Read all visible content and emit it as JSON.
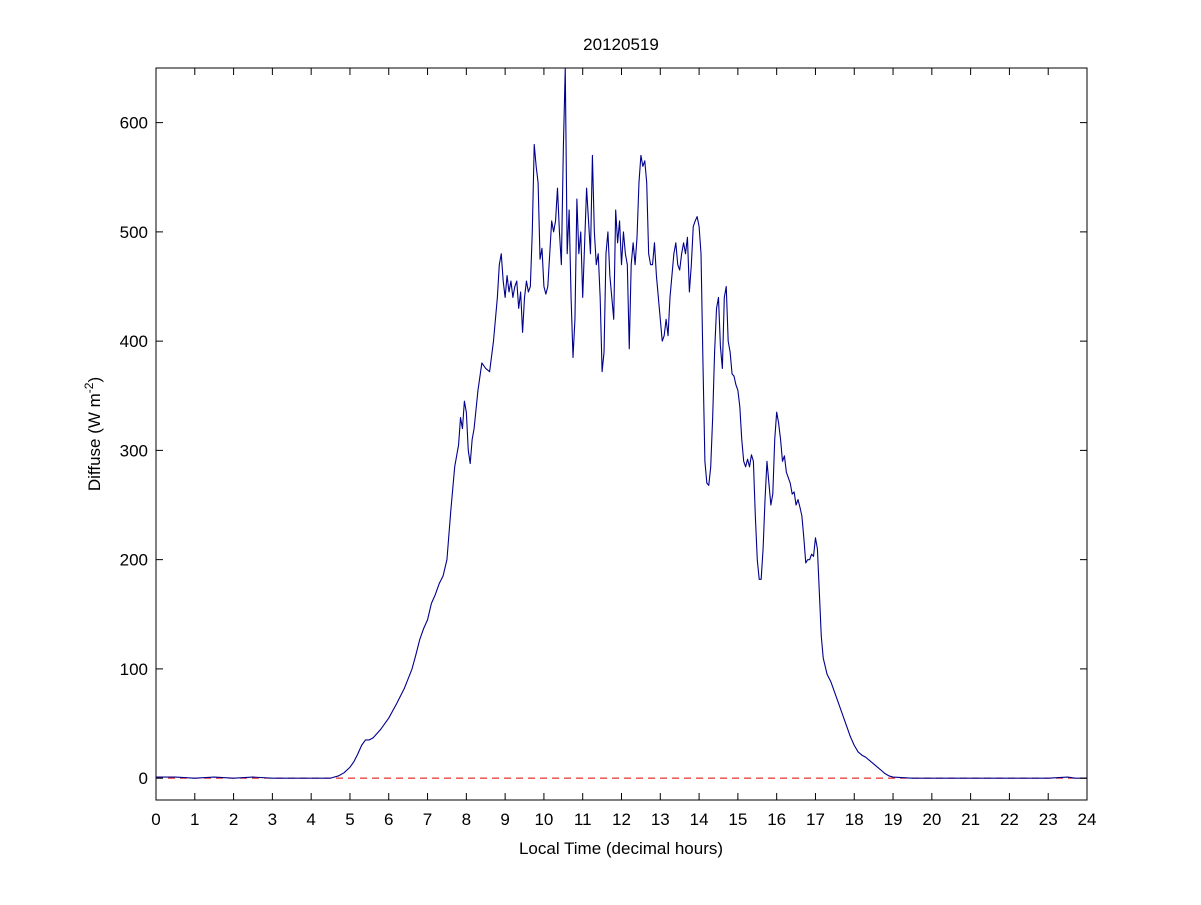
{
  "chart_data": {
    "type": "line",
    "title": "20120519",
    "xlabel": "Local Time (decimal hours)",
    "ylabel_main": "Diffuse (W m",
    "ylabel_sup": "-2",
    "ylabel_end": ")",
    "xlim": [
      0,
      24
    ],
    "ylim": [
      -20,
      650
    ],
    "xticks": [
      0,
      1,
      2,
      3,
      4,
      5,
      6,
      7,
      8,
      9,
      10,
      11,
      12,
      13,
      14,
      15,
      16,
      17,
      18,
      19,
      20,
      21,
      22,
      23,
      24
    ],
    "yticks": [
      0,
      100,
      200,
      300,
      400,
      500,
      600
    ],
    "grid": false,
    "reference_line": {
      "y": 0,
      "color": "#e00000",
      "style": "dashed"
    },
    "series": [
      {
        "color": "#00008b",
        "points": [
          [
            0.0,
            1
          ],
          [
            0.5,
            1
          ],
          [
            1.0,
            0
          ],
          [
            1.5,
            1
          ],
          [
            2.0,
            0
          ],
          [
            2.5,
            1
          ],
          [
            3.0,
            0
          ],
          [
            3.5,
            0
          ],
          [
            4.0,
            0
          ],
          [
            4.5,
            0
          ],
          [
            4.7,
            2
          ],
          [
            4.85,
            5
          ],
          [
            5.0,
            10
          ],
          [
            5.1,
            15
          ],
          [
            5.2,
            22
          ],
          [
            5.3,
            30
          ],
          [
            5.4,
            35
          ],
          [
            5.5,
            35
          ],
          [
            5.6,
            37
          ],
          [
            5.8,
            45
          ],
          [
            6.0,
            55
          ],
          [
            6.2,
            68
          ],
          [
            6.4,
            82
          ],
          [
            6.6,
            100
          ],
          [
            6.7,
            113
          ],
          [
            6.8,
            127
          ],
          [
            6.9,
            137
          ],
          [
            7.0,
            145
          ],
          [
            7.1,
            160
          ],
          [
            7.2,
            168
          ],
          [
            7.3,
            178
          ],
          [
            7.4,
            185
          ],
          [
            7.5,
            200
          ],
          [
            7.6,
            245
          ],
          [
            7.7,
            285
          ],
          [
            7.8,
            305
          ],
          [
            7.85,
            330
          ],
          [
            7.9,
            320
          ],
          [
            7.95,
            345
          ],
          [
            8.0,
            335
          ],
          [
            8.05,
            300
          ],
          [
            8.1,
            288
          ],
          [
            8.15,
            310
          ],
          [
            8.2,
            320
          ],
          [
            8.3,
            355
          ],
          [
            8.4,
            380
          ],
          [
            8.5,
            375
          ],
          [
            8.6,
            372
          ],
          [
            8.7,
            400
          ],
          [
            8.8,
            440
          ],
          [
            8.85,
            470
          ],
          [
            8.9,
            480
          ],
          [
            8.95,
            455
          ],
          [
            9.0,
            440
          ],
          [
            9.05,
            460
          ],
          [
            9.1,
            445
          ],
          [
            9.15,
            455
          ],
          [
            9.2,
            440
          ],
          [
            9.25,
            450
          ],
          [
            9.3,
            455
          ],
          [
            9.35,
            430
          ],
          [
            9.4,
            445
          ],
          [
            9.45,
            408
          ],
          [
            9.5,
            440
          ],
          [
            9.55,
            455
          ],
          [
            9.6,
            445
          ],
          [
            9.65,
            450
          ],
          [
            9.7,
            500
          ],
          [
            9.75,
            580
          ],
          [
            9.8,
            560
          ],
          [
            9.85,
            545
          ],
          [
            9.9,
            475
          ],
          [
            9.95,
            485
          ],
          [
            10.0,
            450
          ],
          [
            10.05,
            443
          ],
          [
            10.1,
            450
          ],
          [
            10.15,
            480
          ],
          [
            10.2,
            510
          ],
          [
            10.25,
            500
          ],
          [
            10.3,
            510
          ],
          [
            10.35,
            540
          ],
          [
            10.4,
            500
          ],
          [
            10.45,
            470
          ],
          [
            10.5,
            575
          ],
          [
            10.55,
            650
          ],
          [
            10.6,
            480
          ],
          [
            10.65,
            520
          ],
          [
            10.7,
            440
          ],
          [
            10.75,
            385
          ],
          [
            10.8,
            420
          ],
          [
            10.85,
            530
          ],
          [
            10.9,
            480
          ],
          [
            10.95,
            500
          ],
          [
            11.0,
            440
          ],
          [
            11.05,
            490
          ],
          [
            11.1,
            540
          ],
          [
            11.15,
            510
          ],
          [
            11.2,
            480
          ],
          [
            11.25,
            570
          ],
          [
            11.3,
            500
          ],
          [
            11.35,
            470
          ],
          [
            11.4,
            480
          ],
          [
            11.45,
            440
          ],
          [
            11.5,
            372
          ],
          [
            11.55,
            390
          ],
          [
            11.6,
            480
          ],
          [
            11.65,
            500
          ],
          [
            11.7,
            460
          ],
          [
            11.75,
            440
          ],
          [
            11.8,
            420
          ],
          [
            11.85,
            520
          ],
          [
            11.9,
            490
          ],
          [
            11.95,
            510
          ],
          [
            12.0,
            470
          ],
          [
            12.05,
            500
          ],
          [
            12.1,
            480
          ],
          [
            12.15,
            470
          ],
          [
            12.2,
            393
          ],
          [
            12.25,
            470
          ],
          [
            12.3,
            490
          ],
          [
            12.35,
            470
          ],
          [
            12.4,
            495
          ],
          [
            12.45,
            545
          ],
          [
            12.5,
            570
          ],
          [
            12.55,
            560
          ],
          [
            12.6,
            565
          ],
          [
            12.65,
            545
          ],
          [
            12.7,
            480
          ],
          [
            12.75,
            470
          ],
          [
            12.8,
            470
          ],
          [
            12.85,
            490
          ],
          [
            12.9,
            460
          ],
          [
            12.95,
            440
          ],
          [
            13.0,
            420
          ],
          [
            13.05,
            400
          ],
          [
            13.1,
            405
          ],
          [
            13.15,
            420
          ],
          [
            13.2,
            405
          ],
          [
            13.25,
            440
          ],
          [
            13.3,
            460
          ],
          [
            13.35,
            480
          ],
          [
            13.4,
            490
          ],
          [
            13.45,
            470
          ],
          [
            13.5,
            465
          ],
          [
            13.55,
            480
          ],
          [
            13.6,
            490
          ],
          [
            13.65,
            480
          ],
          [
            13.7,
            495
          ],
          [
            13.75,
            445
          ],
          [
            13.8,
            470
          ],
          [
            13.85,
            505
          ],
          [
            13.9,
            510
          ],
          [
            13.95,
            514
          ],
          [
            14.0,
            505
          ],
          [
            14.05,
            480
          ],
          [
            14.1,
            380
          ],
          [
            14.15,
            290
          ],
          [
            14.2,
            270
          ],
          [
            14.25,
            268
          ],
          [
            14.3,
            285
          ],
          [
            14.35,
            330
          ],
          [
            14.4,
            390
          ],
          [
            14.45,
            430
          ],
          [
            14.5,
            440
          ],
          [
            14.55,
            395
          ],
          [
            14.6,
            375
          ],
          [
            14.65,
            440
          ],
          [
            14.7,
            450
          ],
          [
            14.75,
            400
          ],
          [
            14.8,
            390
          ],
          [
            14.85,
            370
          ],
          [
            14.9,
            368
          ],
          [
            14.95,
            360
          ],
          [
            15.0,
            355
          ],
          [
            15.05,
            340
          ],
          [
            15.1,
            310
          ],
          [
            15.15,
            290
          ],
          [
            15.2,
            285
          ],
          [
            15.25,
            292
          ],
          [
            15.3,
            285
          ],
          [
            15.35,
            296
          ],
          [
            15.4,
            290
          ],
          [
            15.45,
            240
          ],
          [
            15.5,
            200
          ],
          [
            15.55,
            182
          ],
          [
            15.6,
            182
          ],
          [
            15.65,
            210
          ],
          [
            15.7,
            255
          ],
          [
            15.75,
            290
          ],
          [
            15.8,
            270
          ],
          [
            15.85,
            250
          ],
          [
            15.9,
            260
          ],
          [
            15.95,
            310
          ],
          [
            16.0,
            335
          ],
          [
            16.05,
            325
          ],
          [
            16.1,
            310
          ],
          [
            16.15,
            290
          ],
          [
            16.2,
            295
          ],
          [
            16.25,
            280
          ],
          [
            16.3,
            275
          ],
          [
            16.35,
            270
          ],
          [
            16.4,
            260
          ],
          [
            16.45,
            262
          ],
          [
            16.5,
            250
          ],
          [
            16.55,
            255
          ],
          [
            16.6,
            248
          ],
          [
            16.65,
            240
          ],
          [
            16.7,
            220
          ],
          [
            16.75,
            197
          ],
          [
            16.8,
            200
          ],
          [
            16.85,
            200
          ],
          [
            16.9,
            205
          ],
          [
            16.95,
            203
          ],
          [
            17.0,
            220
          ],
          [
            17.05,
            210
          ],
          [
            17.1,
            170
          ],
          [
            17.15,
            130
          ],
          [
            17.2,
            110
          ],
          [
            17.3,
            95
          ],
          [
            17.4,
            88
          ],
          [
            17.5,
            78
          ],
          [
            17.6,
            68
          ],
          [
            17.7,
            58
          ],
          [
            17.8,
            48
          ],
          [
            17.9,
            38
          ],
          [
            18.0,
            30
          ],
          [
            18.1,
            24
          ],
          [
            18.2,
            21
          ],
          [
            18.3,
            19
          ],
          [
            18.4,
            16
          ],
          [
            18.5,
            13
          ],
          [
            18.6,
            10
          ],
          [
            18.7,
            7
          ],
          [
            18.8,
            4
          ],
          [
            18.9,
            2
          ],
          [
            19.0,
            1
          ],
          [
            19.5,
            0
          ],
          [
            20.0,
            0
          ],
          [
            21.0,
            0
          ],
          [
            22.0,
            0
          ],
          [
            23.0,
            0
          ],
          [
            23.5,
            1
          ],
          [
            23.7,
            0
          ],
          [
            24.0,
            0
          ]
        ]
      }
    ]
  }
}
